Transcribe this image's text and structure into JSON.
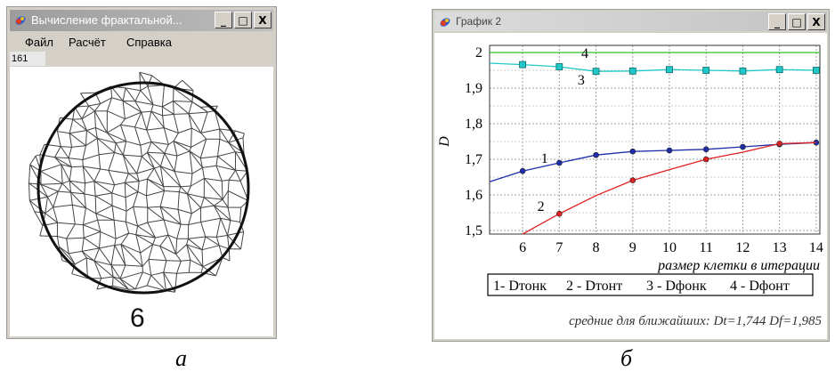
{
  "window_a": {
    "title": "Вычисление фрактальной...",
    "controls": [
      "_",
      "□",
      "X"
    ],
    "menu": [
      "Файл",
      "Расчёт",
      "Справка"
    ],
    "counter": "161",
    "sample_label": "6"
  },
  "window_b": {
    "title": "График 2",
    "controls": [
      "_",
      "□",
      "X"
    ],
    "footer": "средние для ближайших: Dt=1,744   Df=1,985"
  },
  "chart_data": {
    "type": "line",
    "xlabel": "размер клетки в итерации",
    "ylabel": "D",
    "xlim": [
      5.1,
      14.1
    ],
    "ylim": [
      1.49,
      2.02
    ],
    "x_ticks": [
      6,
      7,
      8,
      9,
      10,
      11,
      12,
      13,
      14
    ],
    "y_ticks": [
      "1,5",
      "1,6",
      "1,7",
      "1,8",
      "1,9",
      "2"
    ],
    "y_tick_values": [
      1.5,
      1.6,
      1.7,
      1.8,
      1.9,
      2.0
    ],
    "grid": true,
    "legend": [
      "1- Dтонк",
      "2 - Dтонт",
      "3 - Dфонк",
      "4 - Dфонт"
    ],
    "series": [
      {
        "name": "1",
        "color": "#1f2ea8",
        "marker": "dot",
        "x": [
          5.1,
          6,
          7,
          8,
          9,
          10,
          11,
          12,
          13,
          14
        ],
        "y": [
          1.637,
          1.667,
          1.69,
          1.712,
          1.722,
          1.725,
          1.728,
          1.735,
          1.742,
          1.747
        ],
        "marker_x": [
          6,
          7,
          8,
          9,
          10,
          11,
          12,
          13,
          14
        ]
      },
      {
        "name": "2",
        "color": "#e02020",
        "marker": "dot",
        "x": [
          6,
          7,
          8,
          9,
          10,
          11,
          12,
          13,
          14
        ],
        "y": [
          1.49,
          1.547,
          1.598,
          1.641,
          1.671,
          1.7,
          1.72,
          1.744,
          1.747
        ],
        "marker_x": [
          7,
          9,
          11,
          13
        ]
      },
      {
        "name": "3",
        "color": "#20c8c8",
        "marker": "square",
        "x": [
          5.1,
          6,
          7,
          8,
          9,
          10,
          11,
          12,
          13,
          14
        ],
        "y": [
          1.97,
          1.966,
          1.96,
          1.947,
          1.948,
          1.952,
          1.95,
          1.948,
          1.952,
          1.95
        ],
        "marker_x": [
          6,
          7,
          8,
          9,
          10,
          11,
          12,
          13,
          14
        ]
      },
      {
        "name": "4",
        "color": "#28c028",
        "marker": "diamond",
        "x": [
          5.1,
          14.1
        ],
        "y": [
          2.0,
          2.0
        ],
        "marker_x": [
          7,
          9,
          11,
          13
        ]
      }
    ],
    "annotations": [
      {
        "text": "4",
        "x": 7.6,
        "y": 1.985
      },
      {
        "text": "3",
        "x": 7.5,
        "y": 1.91
      },
      {
        "text": "1",
        "x": 6.5,
        "y": 1.69
      },
      {
        "text": "2",
        "x": 6.4,
        "y": 1.555
      }
    ]
  },
  "captions": {
    "a": "а",
    "b": "б"
  }
}
